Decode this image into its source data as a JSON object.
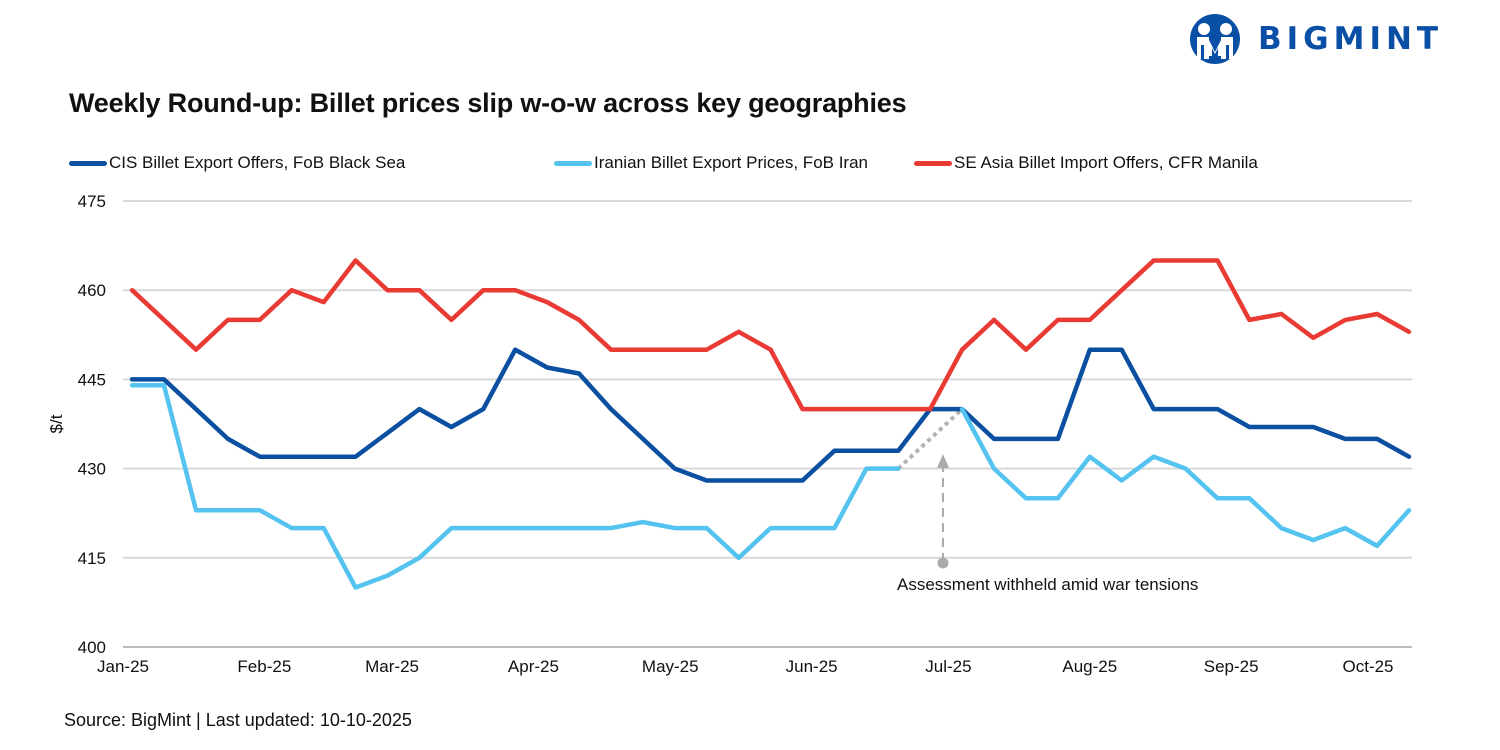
{
  "brand": {
    "name": "BIGMINT",
    "color": "#0a4fa6"
  },
  "chart_data": {
    "type": "line",
    "title": "Weekly Round-up: Billet prices slip w-o-w across key geographies",
    "ylabel": "$/t",
    "xlabel": "",
    "ylim": [
      400,
      475
    ],
    "yticks": [
      400,
      415,
      430,
      445,
      460,
      475
    ],
    "xticks": [
      {
        "date": "2025-01-01",
        "label": "Jan-25"
      },
      {
        "date": "2025-02-01",
        "label": "Feb-25"
      },
      {
        "date": "2025-03-01",
        "label": "Mar-25"
      },
      {
        "date": "2025-04-01",
        "label": "Apr-25"
      },
      {
        "date": "2025-05-01",
        "label": "May-25"
      },
      {
        "date": "2025-06-01",
        "label": "Jun-25"
      },
      {
        "date": "2025-07-01",
        "label": "Jul-25"
      },
      {
        "date": "2025-08-01",
        "label": "Aug-25"
      },
      {
        "date": "2025-09-01",
        "label": "Sep-25"
      },
      {
        "date": "2025-10-01",
        "label": "Oct-25"
      }
    ],
    "grid": true,
    "legend_position": "top",
    "x": [
      "2025-01-03",
      "2025-01-10",
      "2025-01-17",
      "2025-01-24",
      "2025-01-31",
      "2025-02-07",
      "2025-02-14",
      "2025-02-21",
      "2025-02-28",
      "2025-03-07",
      "2025-03-14",
      "2025-03-21",
      "2025-03-28",
      "2025-04-04",
      "2025-04-11",
      "2025-04-18",
      "2025-04-25",
      "2025-05-02",
      "2025-05-09",
      "2025-05-16",
      "2025-05-23",
      "2025-05-30",
      "2025-06-06",
      "2025-06-13",
      "2025-06-20",
      "2025-06-27",
      "2025-07-04",
      "2025-07-11",
      "2025-07-18",
      "2025-07-25",
      "2025-08-01",
      "2025-08-08",
      "2025-08-15",
      "2025-08-22",
      "2025-08-29",
      "2025-09-05",
      "2025-09-12",
      "2025-09-19",
      "2025-09-26",
      "2025-10-03",
      "2025-10-10"
    ],
    "series": [
      {
        "name": "CIS Billet Export Offers, FoB Black Sea",
        "color": "#0a4fa0",
        "values": [
          445,
          445,
          440,
          435,
          432,
          432,
          432,
          432,
          436,
          440,
          437,
          440,
          450,
          447,
          446,
          440,
          435,
          430,
          428,
          428,
          428,
          428,
          433,
          433,
          433,
          440,
          440,
          435,
          435,
          435,
          450,
          450,
          440,
          440,
          440,
          437,
          437,
          437,
          435,
          435,
          432
        ]
      },
      {
        "name": "Iranian Billet Export Prices, FoB Iran",
        "color": "#55c3f0",
        "values": [
          444,
          444,
          423,
          423,
          423,
          420,
          420,
          410,
          412,
          415,
          420,
          420,
          420,
          420,
          420,
          420,
          421,
          420,
          420,
          415,
          420,
          420,
          420,
          430,
          430,
          null,
          440,
          430,
          425,
          425,
          432,
          428,
          432,
          430,
          425,
          425,
          420,
          418,
          420,
          417,
          423
        ]
      },
      {
        "name": "SE Asia Billet Import Offers, CFR Manila",
        "color": "#e93a34",
        "values": [
          460,
          455,
          450,
          455,
          455,
          460,
          458,
          465,
          460,
          460,
          455,
          460,
          460,
          458,
          455,
          450,
          450,
          450,
          450,
          453,
          450,
          440,
          440,
          440,
          440,
          440,
          450,
          455,
          450,
          455,
          455,
          460,
          465,
          465,
          465,
          455,
          456,
          452,
          455,
          456,
          453
        ]
      }
    ],
    "annotations": [
      {
        "text": "Assessment withheld amid  war tensions",
        "date": "2025-06-27",
        "series": "Iranian Billet Export Prices, FoB Iran"
      }
    ]
  },
  "footer": {
    "source": "Source: BigMint | Last updated: 10-10-2025"
  }
}
